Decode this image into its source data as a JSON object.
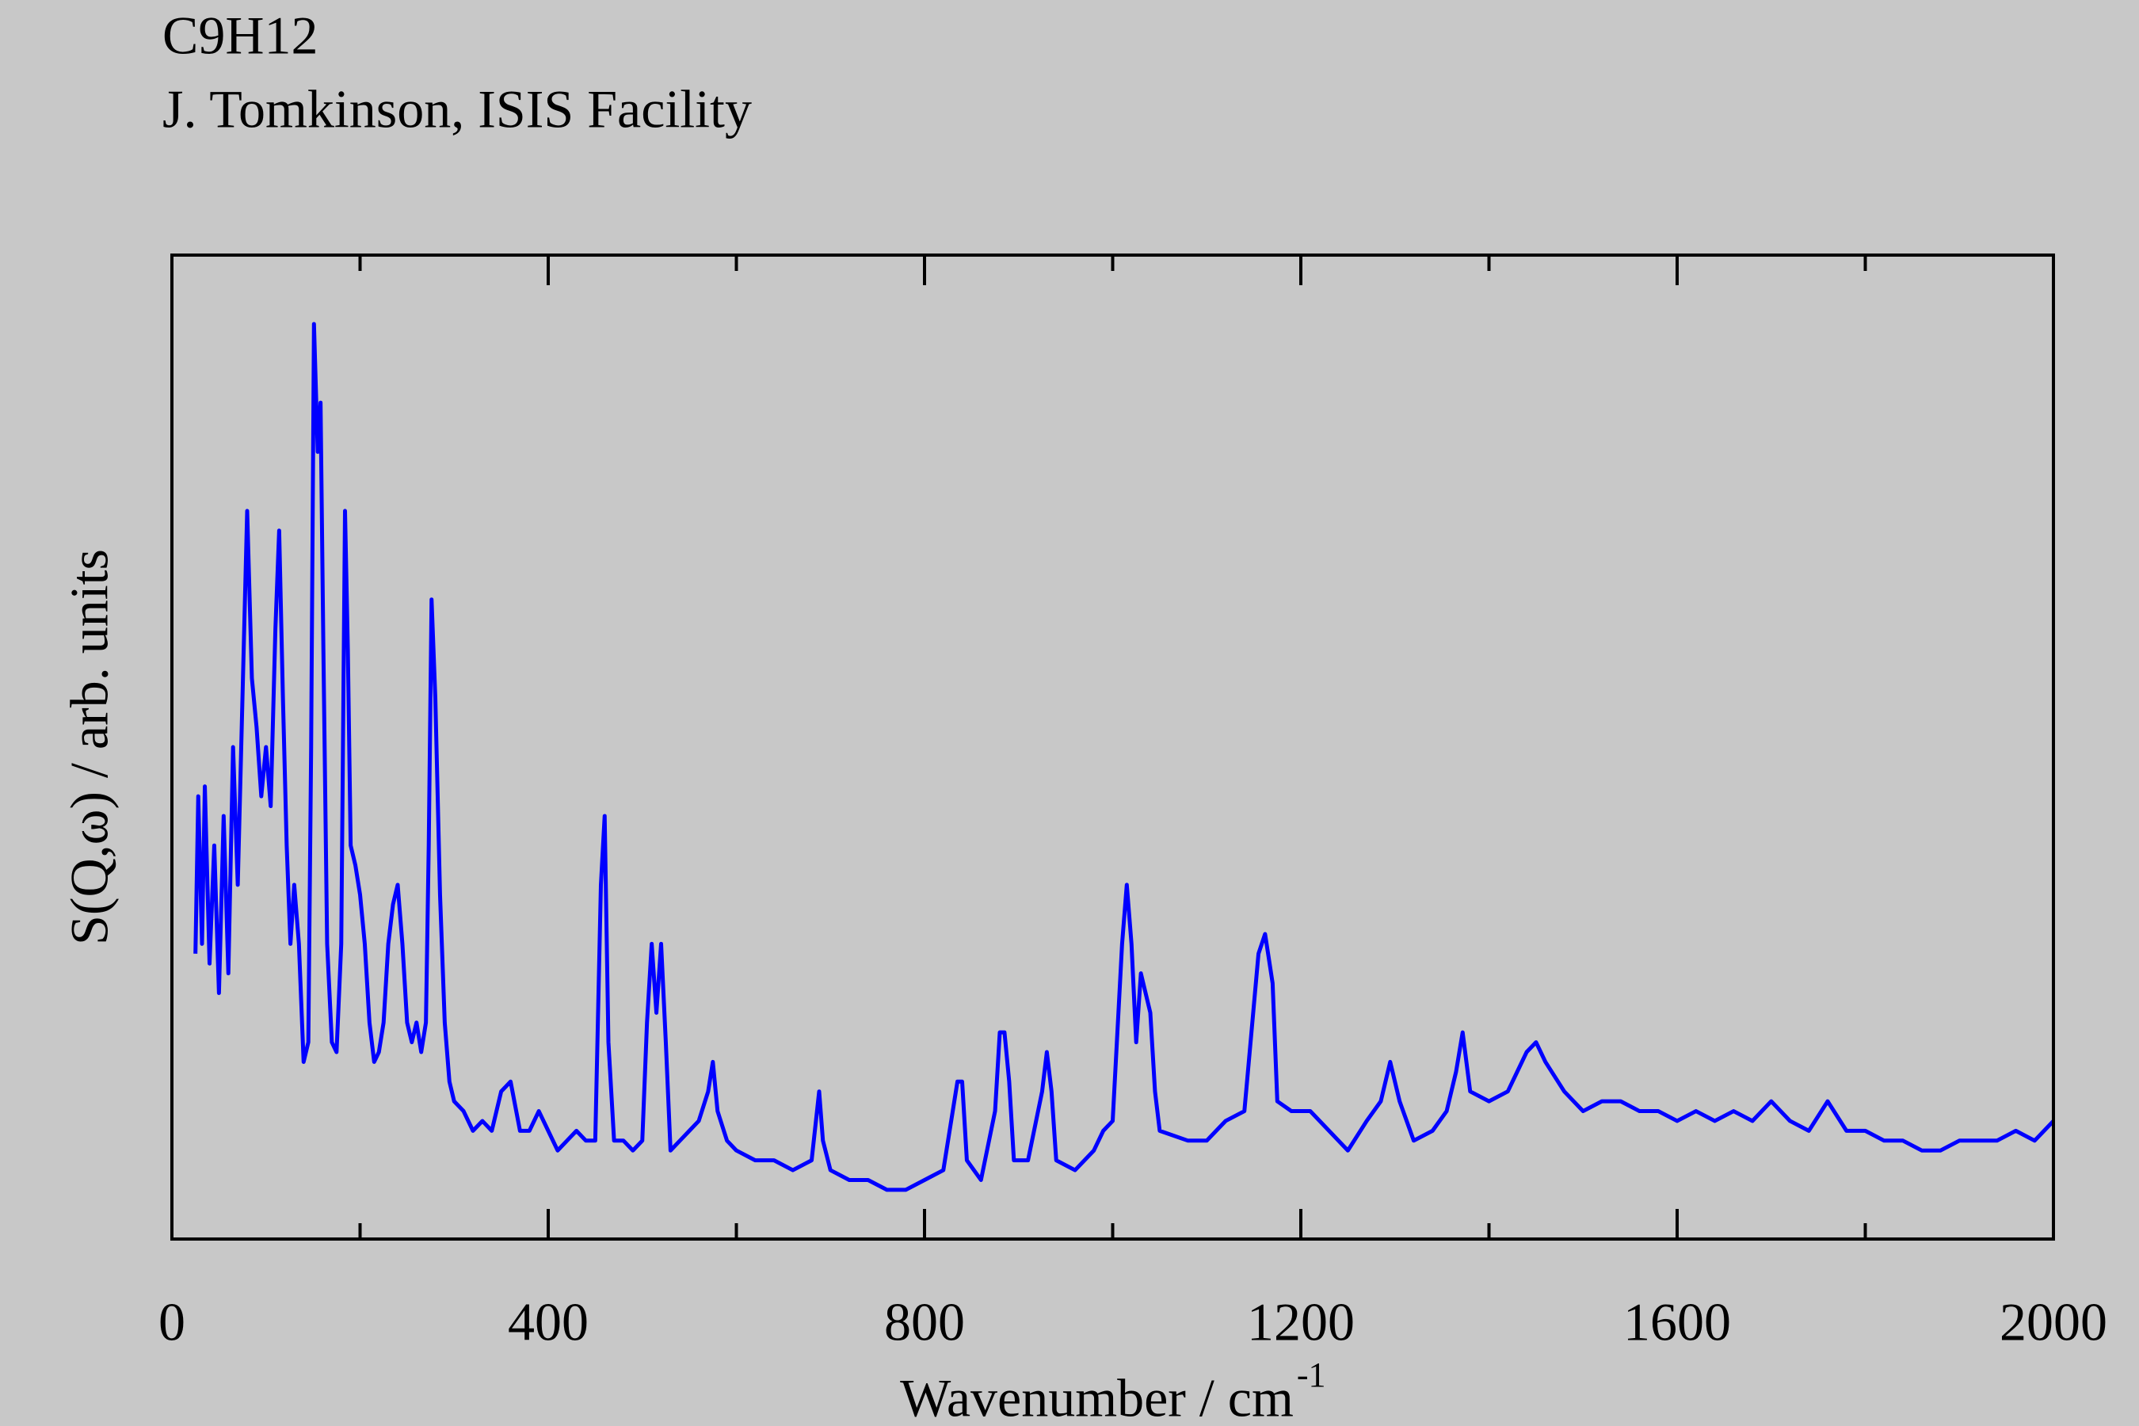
{
  "chart_data": {
    "type": "line",
    "title": "C9H12",
    "subtitle": "J. Tomkinson, ISIS Facility",
    "xlabel": "Wavenumber / cm",
    "xlabel_sup": "-1",
    "ylabel": "S(Q,ω) / arb. units",
    "xlim": [
      0,
      2000
    ],
    "ylim": [
      0,
      100
    ],
    "xticks": [
      0,
      400,
      800,
      1200,
      1600,
      2000
    ],
    "xminorticks": [
      200,
      600,
      1000,
      1400,
      1800
    ],
    "x": [
      25,
      28,
      32,
      35,
      40,
      45,
      50,
      55,
      60,
      65,
      70,
      75,
      80,
      85,
      90,
      95,
      100,
      105,
      110,
      114,
      118,
      122,
      126,
      130,
      135,
      140,
      145,
      148,
      151,
      155,
      158,
      161,
      165,
      170,
      175,
      180,
      184,
      187,
      190,
      195,
      200,
      205,
      210,
      215,
      220,
      225,
      230,
      235,
      240,
      245,
      250,
      255,
      260,
      265,
      270,
      273,
      276,
      280,
      285,
      290,
      295,
      300,
      310,
      320,
      330,
      340,
      350,
      360,
      370,
      380,
      390,
      400,
      410,
      420,
      430,
      440,
      450,
      456,
      460,
      464,
      470,
      480,
      490,
      500,
      505,
      510,
      515,
      520,
      525,
      530,
      540,
      550,
      560,
      570,
      575,
      580,
      590,
      600,
      620,
      640,
      660,
      680,
      688,
      692,
      700,
      720,
      740,
      760,
      780,
      800,
      820,
      835,
      840,
      845,
      860,
      875,
      880,
      885,
      890,
      895,
      910,
      925,
      930,
      935,
      940,
      960,
      980,
      990,
      1000,
      1010,
      1015,
      1020,
      1025,
      1030,
      1040,
      1045,
      1050,
      1080,
      1100,
      1120,
      1140,
      1155,
      1162,
      1170,
      1175,
      1190,
      1210,
      1230,
      1250,
      1270,
      1285,
      1295,
      1305,
      1320,
      1340,
      1355,
      1365,
      1372,
      1380,
      1400,
      1420,
      1430,
      1440,
      1450,
      1460,
      1480,
      1500,
      1520,
      1540,
      1560,
      1580,
      1600,
      1620,
      1640,
      1660,
      1680,
      1700,
      1720,
      1740,
      1760,
      1780,
      1800,
      1820,
      1840,
      1860,
      1880,
      1900,
      1920,
      1940,
      1960,
      1980,
      2000
    ],
    "series": [
      {
        "color": "#0000ff",
        "values": [
          29,
          45,
          30,
          46,
          28,
          40,
          25,
          43,
          27,
          50,
          36,
          55,
          74,
          57,
          52,
          45,
          50,
          44,
          62,
          72,
          55,
          40,
          30,
          36,
          30,
          18,
          20,
          50,
          93,
          80,
          85,
          60,
          30,
          20,
          19,
          30,
          74,
          60,
          40,
          38,
          35,
          30,
          22,
          18,
          19,
          22,
          30,
          34,
          36,
          30,
          22,
          20,
          22,
          19,
          22,
          40,
          65,
          55,
          35,
          22,
          16,
          14,
          13,
          11,
          12,
          11,
          15,
          16,
          11,
          11,
          13,
          11,
          9,
          10,
          11,
          10,
          10,
          36,
          43,
          20,
          10,
          10,
          9,
          10,
          22,
          30,
          23,
          30,
          20,
          9,
          10,
          11,
          12,
          15,
          18,
          13,
          10,
          9,
          8,
          8,
          7,
          8,
          15,
          10,
          7,
          6,
          6,
          5,
          5,
          6,
          7,
          16,
          16,
          8,
          6,
          13,
          21,
          21,
          16,
          8,
          8,
          15,
          19,
          15,
          8,
          7,
          9,
          11,
          12,
          30,
          36,
          30,
          20,
          27,
          23,
          15,
          11,
          10,
          10,
          12,
          13,
          29,
          31,
          26,
          14,
          13,
          13,
          11,
          9,
          12,
          14,
          18,
          14,
          10,
          11,
          13,
          17,
          21,
          15,
          14,
          15,
          17,
          19,
          20,
          18,
          15,
          13,
          14,
          14,
          13,
          13,
          12,
          13,
          12,
          13,
          12,
          14,
          12,
          11,
          14,
          11,
          11,
          10,
          10,
          9,
          9,
          10,
          10,
          10,
          11,
          10,
          12
        ]
      }
    ]
  }
}
